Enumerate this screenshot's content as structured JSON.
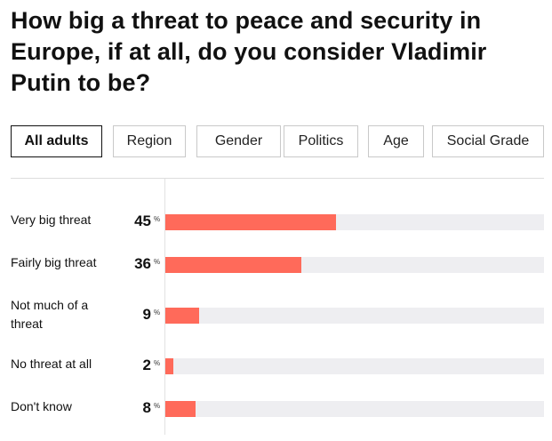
{
  "title": "How big a threat to peace and security in Europe, if at all, do you consider Vladimir Putin to be?",
  "filters": [
    {
      "label": "All adults",
      "active": true
    },
    {
      "label": "Region",
      "active": false
    },
    {
      "label": "Gender",
      "active": false
    },
    {
      "label": "Politics",
      "active": false
    },
    {
      "label": "Age",
      "active": false
    },
    {
      "label": "Social Grade",
      "active": false
    }
  ],
  "percent_symbol": "%",
  "colors": {
    "bar": "#ff6a5a",
    "track": "#eeeef1"
  },
  "chart_data": {
    "type": "bar",
    "orientation": "horizontal",
    "categories": [
      "Very big threat",
      "Fairly big threat",
      "Not much of a threat",
      "No threat at all",
      "Don't know"
    ],
    "values": [
      45,
      36,
      9,
      2,
      8
    ],
    "value_labels": [
      "45",
      "36",
      "9",
      "2",
      "8"
    ],
    "xlim": [
      0,
      100
    ],
    "unit": "%",
    "title": "How big a threat to peace and security in Europe, if at all, do you consider Vladimir Putin to be?",
    "grid": false,
    "legend": "none"
  }
}
